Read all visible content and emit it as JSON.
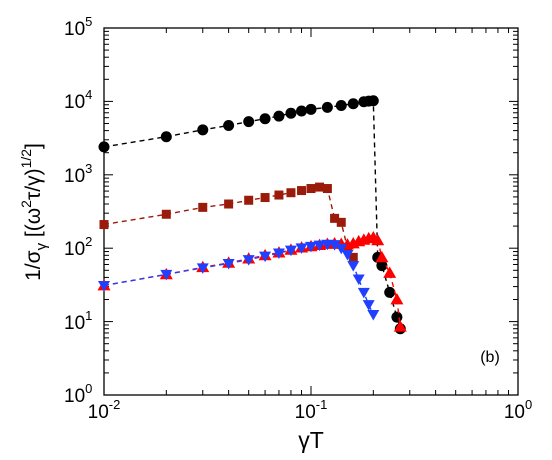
{
  "chart_data": {
    "type": "scatter",
    "xscale": "log",
    "yscale": "log",
    "xlim": [
      0.01,
      1
    ],
    "ylim": [
      1,
      100000
    ],
    "x_tick_labels": [
      {
        "value": 0.01,
        "base": "10",
        "exp": "-2"
      },
      {
        "value": 0.1,
        "base": "10",
        "exp": "-1"
      },
      {
        "value": 1,
        "base": "10",
        "exp": "0"
      }
    ],
    "y_tick_labels": [
      {
        "value": 1,
        "base": "10",
        "exp": "0"
      },
      {
        "value": 10,
        "base": "10",
        "exp": "1"
      },
      {
        "value": 100,
        "base": "10",
        "exp": "2"
      },
      {
        "value": 1000,
        "base": "10",
        "exp": "3"
      },
      {
        "value": 10000,
        "base": "10",
        "exp": "4"
      },
      {
        "value": 100000,
        "base": "10",
        "exp": "5"
      }
    ],
    "xlabel": {
      "greek": "γ",
      "text": "T"
    },
    "ylabel": {
      "lead": "1/σ",
      "lead_sub": "γ",
      "open": " [(ω",
      "sup1": "2",
      "mid": "τ/γ)",
      "sup2": "1/2",
      "close": "]"
    },
    "annotation": "(b)",
    "grid": false,
    "series": [
      {
        "marker": "circle",
        "color": "#000000",
        "x": [
          0.01,
          0.02,
          0.03,
          0.04,
          0.05,
          0.06,
          0.07,
          0.08,
          0.09,
          0.1,
          0.12,
          0.14,
          0.16,
          0.18,
          0.19,
          0.2,
          0.21,
          0.22,
          0.24,
          0.26,
          0.27
        ],
        "y": [
          2400,
          3300,
          4100,
          4700,
          5300,
          5800,
          6300,
          6900,
          7400,
          7800,
          8300,
          8800,
          9300,
          9900,
          10100,
          10200,
          75,
          58,
          25,
          11.5,
          8
        ]
      },
      {
        "marker": "square",
        "color": "#9b1b0b",
        "x": [
          0.01,
          0.02,
          0.03,
          0.04,
          0.05,
          0.06,
          0.07,
          0.08,
          0.09,
          0.1,
          0.11,
          0.12,
          0.13,
          0.14,
          0.15,
          0.16
        ],
        "y": [
          210,
          290,
          360,
          400,
          450,
          490,
          530,
          570,
          610,
          650,
          680,
          650,
          255,
          225,
          100,
          75
        ]
      },
      {
        "marker": "triangle-up",
        "color": "#ff0000",
        "x": [
          0.01,
          0.02,
          0.03,
          0.04,
          0.05,
          0.06,
          0.07,
          0.08,
          0.09,
          0.1,
          0.11,
          0.12,
          0.13,
          0.14,
          0.15,
          0.16,
          0.17,
          0.18,
          0.19,
          0.2,
          0.21,
          0.22,
          0.24,
          0.26,
          0.27
        ],
        "y": [
          31,
          44,
          55,
          63,
          72,
          80,
          87,
          95,
          102,
          106,
          110,
          114,
          116,
          114,
          112,
          116,
          124,
          130,
          136,
          140,
          128,
          75,
          46,
          20,
          8.5
        ]
      },
      {
        "marker": "triangle-down",
        "color": "#2040ff",
        "x": [
          0.01,
          0.02,
          0.03,
          0.04,
          0.05,
          0.06,
          0.07,
          0.08,
          0.09,
          0.1,
          0.11,
          0.12,
          0.13,
          0.14,
          0.15,
          0.16,
          0.17,
          0.18,
          0.19,
          0.2
        ],
        "y": [
          31,
          44,
          54,
          62,
          70,
          78,
          86,
          94,
          101,
          106,
          110,
          113,
          112,
          100,
          82,
          58,
          38,
          25,
          17,
          12.5
        ]
      }
    ]
  }
}
